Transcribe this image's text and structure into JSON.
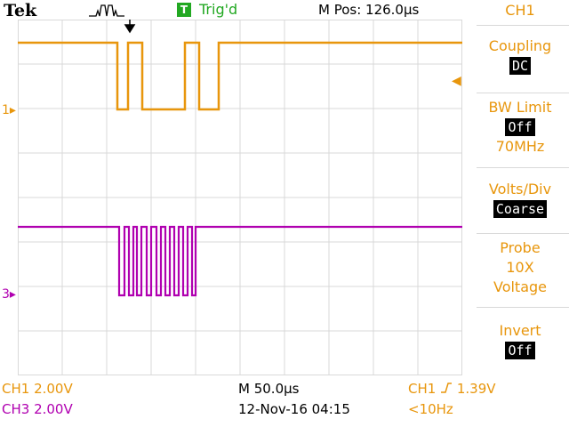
{
  "header": {
    "brand": "Tek",
    "trigger_badge": "T",
    "trigger_status": "Trig'd",
    "m_pos": "M Pos: 126.0µs"
  },
  "channel_markers": {
    "ch1": "1",
    "ch3": "3"
  },
  "menu": {
    "title": "CH1",
    "coupling_label": "Coupling",
    "coupling_value": "DC",
    "bw_label": "BW Limit",
    "bw_value": "Off",
    "bw_freq": "70MHz",
    "volts_label": "Volts/Div",
    "volts_value": "Coarse",
    "probe_label": "Probe",
    "probe_atten": "10X",
    "probe_type": "Voltage",
    "invert_label": "Invert",
    "invert_value": "Off"
  },
  "status": {
    "ch1_scale": "CH1  2.00V",
    "ch3_scale": "CH3  2.00V",
    "timebase": "M 50.0µs",
    "date_time": "12-Nov-16 04:15",
    "trigger_source": "CH1",
    "trigger_level": "1.39V",
    "trigger_freq": "<10Hz"
  },
  "colors": {
    "ch1": "#e8960c",
    "ch3": "#b000b0",
    "trigger": "#22a822",
    "grid": "#d9d9d9"
  }
}
